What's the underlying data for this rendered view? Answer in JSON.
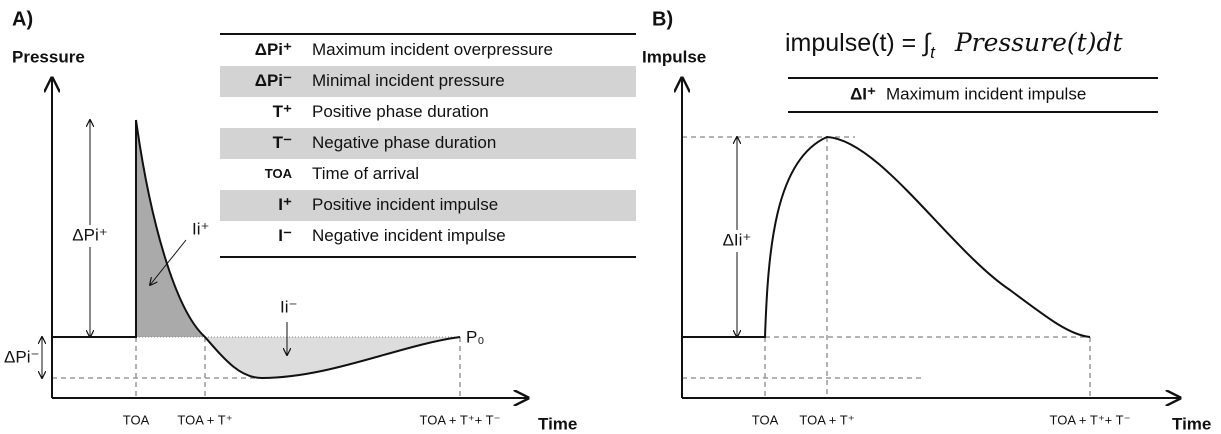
{
  "panel_a": {
    "label": "A)",
    "y_axis": "Pressure",
    "x_axis": "Time",
    "table": {
      "rows": [
        [
          "ΔPi⁺",
          "Maximum incident overpressure"
        ],
        [
          "ΔPi⁻",
          "Minimal incident pressure"
        ],
        [
          "T⁺",
          "Positive phase duration"
        ],
        [
          "T⁻",
          "Negative phase duration"
        ],
        [
          "TOA",
          "Time of arrival"
        ],
        [
          "I⁺",
          "Positive incident impulse"
        ],
        [
          "I⁻",
          "Negative incident impulse"
        ]
      ]
    },
    "annotations": {
      "peak": "ΔPi⁺",
      "min": "ΔPi⁻",
      "pos_impulse": "Ii⁺",
      "neg_impulse": "Ii⁻",
      "ambient": "P₀"
    },
    "x_labels": [
      "TOA",
      "TOA + T⁺",
      "TOA + T⁺+ T⁻"
    ]
  },
  "panel_b": {
    "label": "B)",
    "y_axis": "Impulse",
    "x_axis": "Time",
    "formula": {
      "lhs": "impulse(t) = ∫",
      "sub": "t",
      "rhs": "Pressure(t)dt"
    },
    "table": {
      "rows": [
        [
          "ΔI⁺",
          "Maximum incident impulse"
        ]
      ]
    },
    "annotations": {
      "peak": "ΔIi⁺"
    },
    "x_labels": [
      "TOA",
      "TOA + T⁺",
      "TOA + T⁺+ T⁻"
    ]
  }
}
